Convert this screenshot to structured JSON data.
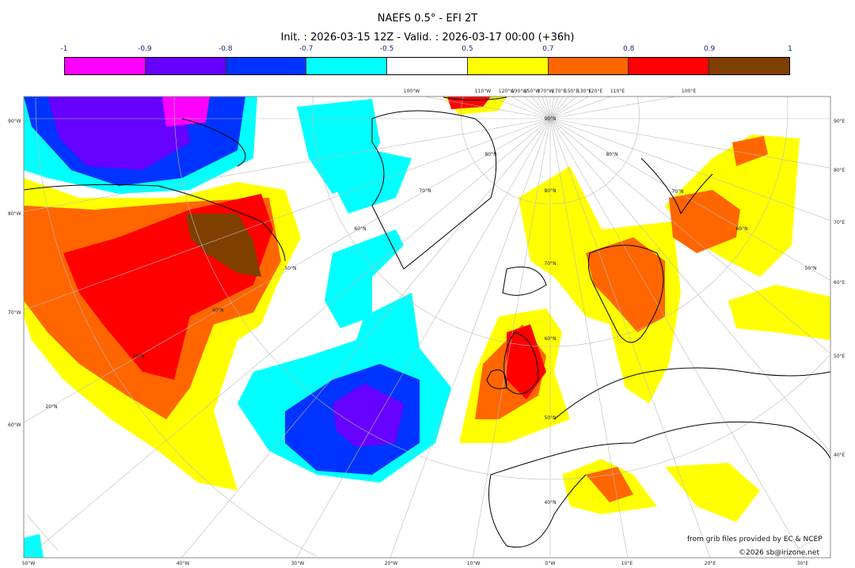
{
  "title": "NAEFS 0.5° - EFI 2T",
  "subtitle": "Init. : 2026-03-15 12Z - Valid. : 2026-03-17 00:00 (+36h)",
  "colorbar": {
    "tick_labels": [
      "-1",
      "-0.9",
      "-0.8",
      "-0.7",
      "-0.5",
      "0.5",
      "0.7",
      "0.8",
      "0.9",
      "1"
    ],
    "colors": [
      "#ff00ff",
      "#6600ff",
      "#0033ff",
      "#00ffff",
      "#ffffff",
      "#ffff00",
      "#ff6600",
      "#ff0000",
      "#7f3f00"
    ]
  },
  "graticule": {
    "top_labels": [
      "100°W",
      "110°W",
      "120°W",
      "130°W",
      "150°W",
      "170°W",
      "170°E",
      "150°E",
      "130°E",
      "120°E",
      "110°E",
      "100°E"
    ],
    "left_labels": [
      "90°W",
      "80°W",
      "70°W",
      "60°W"
    ],
    "right_labels": [
      "90°E",
      "80°E",
      "70°E",
      "60°E",
      "50°E",
      "40°E"
    ],
    "bottom_labels": [
      "50°W",
      "40°W",
      "30°W",
      "20°W",
      "10°W",
      "0°W",
      "10°E",
      "20°E",
      "30°E"
    ],
    "lat_labels": [
      "90°N",
      "80°N",
      "70°N",
      "60°N",
      "50°N",
      "40°N",
      "30°N",
      "20°N",
      "80°N",
      "70°N",
      "60°N",
      "50°N",
      "40°N",
      "80°N",
      "70°N",
      "60°N",
      "50°N"
    ]
  },
  "credits": {
    "source": "from grib files provided by EC & NCEP",
    "copyright": "©2026 sb@irizone.net"
  }
}
